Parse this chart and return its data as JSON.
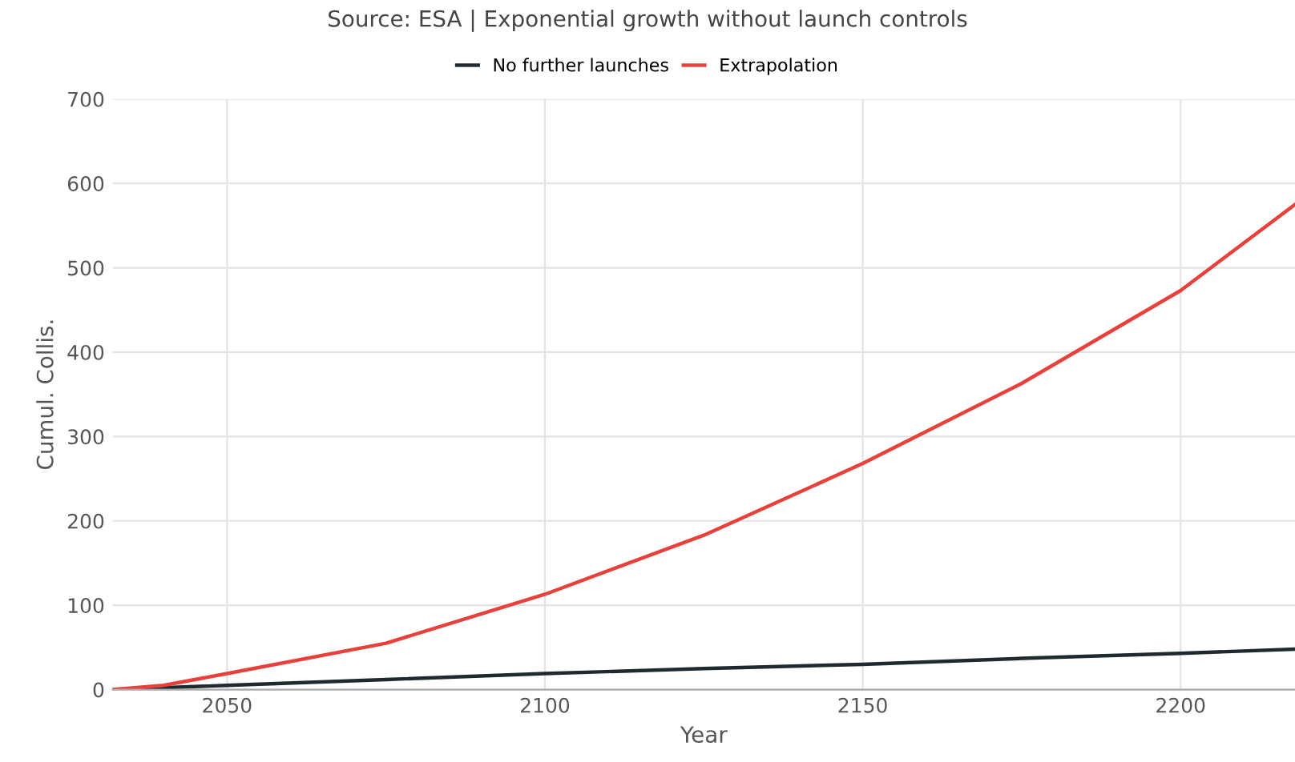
{
  "chart_data": {
    "type": "line",
    "title": "Source: ESA | Exponential growth without launch controls",
    "xlabel": "Year",
    "ylabel": "Cumul. Collis.",
    "series": [
      {
        "name": "No further launches",
        "color": "#1f2a2e",
        "x": [
          2032,
          2050,
          2075,
          2100,
          2125,
          2150,
          2175,
          2200,
          2218
        ],
        "values": [
          0,
          5,
          12,
          19,
          25,
          30,
          37,
          43,
          48
        ]
      },
      {
        "name": "Extrapolation",
        "color": "#e8413c",
        "x": [
          2032,
          2040,
          2050,
          2075,
          2100,
          2125,
          2150,
          2175,
          2200,
          2218
        ],
        "values": [
          0,
          5,
          19,
          55,
          113,
          183,
          268,
          363,
          473,
          575
        ]
      }
    ],
    "xlim": [
      2032,
      2218
    ],
    "xticks": [
      2050,
      2100,
      2150,
      2200
    ],
    "ylim": [
      0,
      700
    ],
    "yticks": [
      0,
      100,
      200,
      300,
      400,
      500,
      600,
      700
    ],
    "grid": true,
    "legend": "top"
  }
}
